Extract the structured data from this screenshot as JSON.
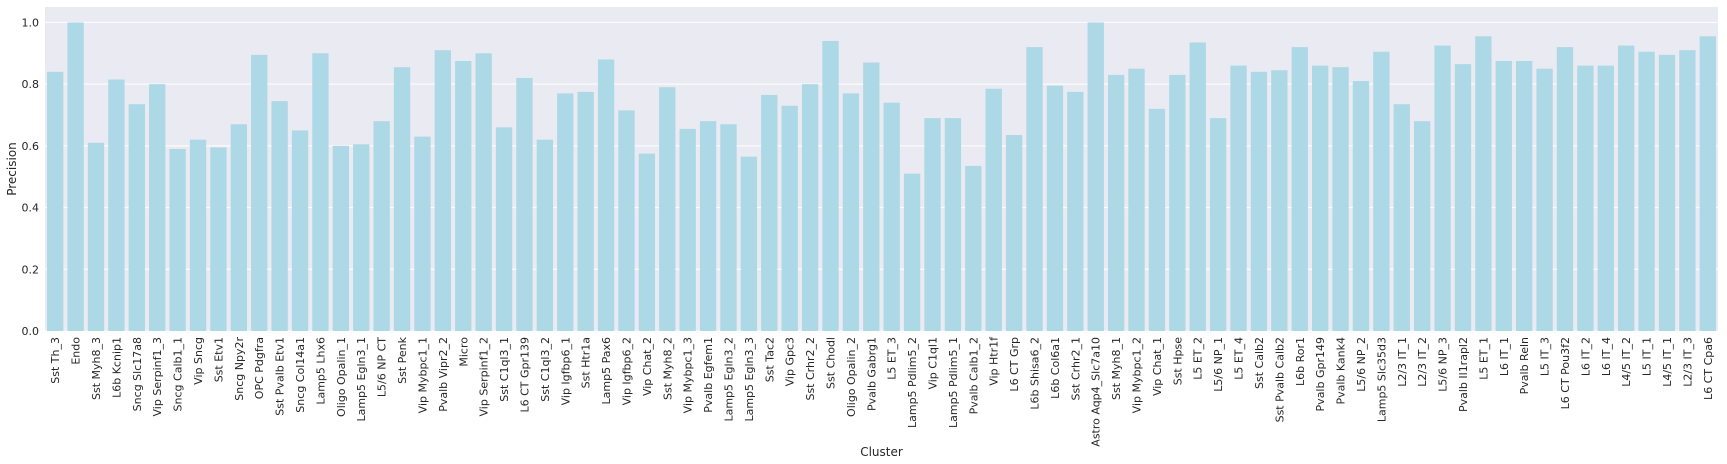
{
  "chart_data": {
    "type": "bar",
    "title": "",
    "xlabel": "Cluster",
    "ylabel": "Precision",
    "ylim": [
      0,
      1.05
    ],
    "yticks": [
      "0.0",
      "0.2",
      "0.4",
      "0.6",
      "0.8",
      "1.0"
    ],
    "grid": "horizontal",
    "background": "#eaeaf2",
    "bar_color": "#add8e6",
    "categories": [
      "Sst Th_3",
      "Endo",
      "Sst Myh8_3",
      "L6b Kcnip1",
      "Sncg Slc17a8",
      "Vip Serpinf1_3",
      "Sncg Calb1_1",
      "Vip Sncg",
      "Sst Etv1",
      "Sncg Npy2r",
      "OPC Pdgfra",
      "Sst Pvalb Etv1",
      "Sncg Col14a1",
      "Lamp5 Lhx6",
      "Oligo Opalin_1",
      "Lamp5 Egln3_1",
      "L5/6 NP CT",
      "Sst Penk",
      "Vip Mybpc1_1",
      "Pvalb Vipr2_2",
      "Micro",
      "Vip Serpinf1_2",
      "Sst C1ql3_1",
      "L6 CT Gpr139",
      "Sst C1ql3_2",
      "Vip Igfbp6_1",
      "Sst Htr1a",
      "Lamp5 Pax6",
      "Vip Igfbp6_2",
      "Vip Chat_2",
      "Sst Myh8_2",
      "Vip Mybpc1_3",
      "Pvalb Egfem1",
      "Lamp5 Egln3_2",
      "Lamp5 Egln3_3",
      "Sst Tac2",
      "Vip Gpc3",
      "Sst Crhr2_2",
      "Sst Chodl",
      "Oligo Opalin_2",
      "Pvalb Gabrg1",
      "L5 ET_3",
      "Lamp5 Pdlim5_2",
      "Vip C1ql1",
      "Lamp5 Pdlim5_1",
      "Pvalb Calb1_2",
      "Vip Htr1f",
      "L6 CT Grp",
      "L6b Shisa6_2",
      "L6b Col6a1",
      "Sst Crhr2_1",
      "Astro Aqp4_Slc7a10",
      "Sst Myh8_1",
      "Vip Mybpc1_2",
      "Vip Chat_1",
      "Sst Hpse",
      "L5 ET_2",
      "L5/6 NP_1",
      "L5 ET_4",
      "Sst Calb2",
      "Sst Pvalb Calb2",
      "L6b Ror1",
      "Pvalb Gpr149",
      "Pvalb Kank4",
      "L5/6 NP_2",
      "Lamp5 Slc35d3",
      "L2/3 IT_1",
      "L2/3 IT_2",
      "L5/6 NP_3",
      "Pvalb Il1rapl2",
      "L5 ET_1",
      "L6 IT_1",
      "Pvalb Reln",
      "L5 IT_3",
      "L6 CT Pou3f2",
      "L6 IT_2",
      "L6 IT_4",
      "L4/5 IT_2",
      "L5 IT_1",
      "L4/5 IT_1",
      "L2/3 IT_3",
      "L6 CT Cpa6"
    ],
    "values": [
      0.84,
      1.0,
      0.61,
      0.815,
      0.735,
      0.8,
      0.59,
      0.62,
      0.595,
      0.67,
      0.895,
      0.745,
      0.65,
      0.9,
      0.6,
      0.605,
      0.68,
      0.855,
      0.63,
      0.91,
      0.875,
      0.9,
      0.66,
      0.82,
      0.62,
      0.77,
      0.775,
      0.88,
      0.715,
      0.575,
      0.79,
      0.655,
      0.68,
      0.67,
      0.565,
      0.765,
      0.73,
      0.8,
      0.94,
      0.77,
      0.87,
      0.74,
      0.51,
      0.69,
      0.69,
      0.535,
      0.785,
      0.635,
      0.92,
      0.795,
      0.775,
      1.0,
      0.83,
      0.85,
      0.72,
      0.83,
      0.935,
      0.69,
      0.86,
      0.84,
      0.845,
      0.92,
      0.86,
      0.855,
      0.81,
      0.905,
      0.735,
      0.68,
      0.925,
      0.865,
      0.955,
      0.875,
      0.875,
      0.85,
      0.92,
      0.86,
      0.86,
      0.925,
      0.905,
      0.895,
      0.91,
      0.955
    ]
  }
}
